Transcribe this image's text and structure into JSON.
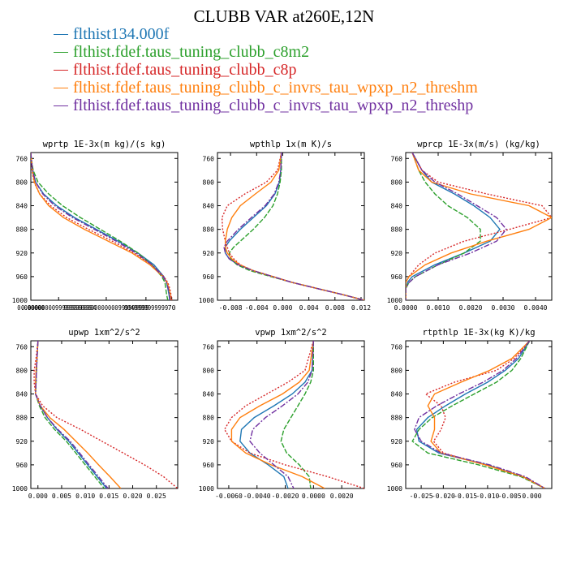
{
  "title": "CLUBB VAR at260E,12N",
  "legend": [
    {
      "name": "flthist134.000f",
      "color": "#1f77b4"
    },
    {
      "name": "flthist.fdef.taus_tuning_clubb_c8m2",
      "color": "#2ca02c"
    },
    {
      "name": "flthist.fdef.taus_tuning_clubb_c8p",
      "color": "#d62728"
    },
    {
      "name": "flthist.fdef.taus_tuning_clubb_c_invrs_tau_wpxp_n2_threshm",
      "color": "#ff7f0e"
    },
    {
      "name": "flthist.fdef.taus_tuning_clubb_c_invrs_tau_wpxp_n2_threshp",
      "color": "#7030a0"
    }
  ],
  "chart_data": [
    {
      "type": "line",
      "title": "wprtp  1E-3x(m kg)/(s kg)",
      "xlim": [
        0.0,
        3.7e-08
      ],
      "ylim": [
        1000,
        750
      ],
      "yticks": [
        760,
        800,
        840,
        880,
        920,
        960,
        1000
      ],
      "xtick_labels": [
        {
          "value": 0.0,
          "label": "0.000000"
        },
        {
          "value": 7e-09,
          "label": "0.00000000999999999994"
        },
        {
          "value": 1.9e-08,
          "label": "9998000000000000999999999"
        },
        {
          "value": 2.9e-08,
          "label": "0049999999999"
        },
        {
          "value": 3.55e-08,
          "label": "70"
        }
      ],
      "y": [
        750,
        760,
        780,
        800,
        820,
        840,
        860,
        880,
        900,
        920,
        940,
        960,
        970,
        980,
        990,
        1000
      ],
      "series": [
        {
          "values": [
            0,
            1e-10,
            5e-10,
            1.2e-09,
            3.2e-09,
            6.5e-09,
            1.1e-08,
            1.65e-08,
            2.2e-08,
            2.7e-08,
            3.1e-08,
            3.35e-08,
            3.42e-08,
            3.45e-08,
            3.48e-08,
            3.5e-08
          ]
        },
        {
          "values": [
            0,
            1e-10,
            6e-10,
            1.8e-09,
            4.5e-09,
            8e-09,
            1.25e-08,
            1.75e-08,
            2.25e-08,
            2.7e-08,
            3.05e-08,
            3.3e-08,
            3.38e-08,
            3.4e-08,
            3.42e-08,
            3.45e-08
          ]
        },
        {
          "values": [
            0,
            1e-10,
            3e-10,
            8e-10,
            2.2e-09,
            5e-09,
            9e-09,
            1.45e-08,
            2.05e-08,
            2.6e-08,
            3.05e-08,
            3.35e-08,
            3.45e-08,
            3.5e-08,
            3.53e-08,
            3.55e-08
          ]
        },
        {
          "values": [
            0,
            1e-10,
            4e-10,
            9e-10,
            2.2e-09,
            4.5e-09,
            8.2e-09,
            1.35e-08,
            1.95e-08,
            2.55e-08,
            3e-08,
            3.33e-08,
            3.43e-08,
            3.48e-08,
            3.51e-08,
            3.53e-08
          ]
        },
        {
          "values": [
            0,
            1e-10,
            4e-10,
            1.2e-09,
            3e-09,
            6e-09,
            1.05e-08,
            1.6e-08,
            2.15e-08,
            2.65e-08,
            3.05e-08,
            3.33e-08,
            3.42e-08,
            3.46e-08,
            3.49e-08,
            3.51e-08
          ]
        }
      ]
    },
    {
      "type": "line",
      "title": "wpthlp  1x(m K)/s",
      "xlim": [
        -0.01,
        0.0125
      ],
      "ylim": [
        1000,
        750
      ],
      "yticks": [
        760,
        800,
        840,
        880,
        920,
        960,
        1000
      ],
      "xticks": [
        -0.008,
        -0.004,
        0.0,
        0.004,
        0.008,
        0.012
      ],
      "xtick_labels": [
        "-0.008",
        "-0.004",
        "0.000",
        "0.004",
        "0.008",
        "0.012"
      ],
      "y": [
        750,
        780,
        800,
        820,
        840,
        860,
        880,
        900,
        910,
        920,
        930,
        940,
        950,
        960,
        970,
        980,
        990,
        1000
      ],
      "series": [
        {
          "values": [
            -0.0002,
            -0.0003,
            -0.0005,
            -0.0012,
            -0.0025,
            -0.0045,
            -0.0065,
            -0.0082,
            -0.0088,
            -0.0088,
            -0.0082,
            -0.0068,
            -0.0045,
            -0.0015,
            0.0015,
            0.0052,
            0.009,
            0.0125
          ]
        },
        {
          "values": [
            -0.0002,
            -0.0002,
            -0.0004,
            -0.0008,
            -0.0015,
            -0.0028,
            -0.0045,
            -0.0065,
            -0.0075,
            -0.0082,
            -0.008,
            -0.007,
            -0.005,
            -0.0018,
            0.0015,
            0.0052,
            0.009,
            0.0125
          ]
        },
        {
          "values": [
            -0.0002,
            -0.0008,
            -0.0025,
            -0.0058,
            -0.0085,
            -0.0093,
            -0.0092,
            -0.0088,
            -0.0085,
            -0.0082,
            -0.0075,
            -0.0065,
            -0.0045,
            -0.0015,
            0.0015,
            0.0052,
            0.009,
            0.0125
          ]
        },
        {
          "values": [
            -0.0002,
            -0.0006,
            -0.0018,
            -0.0042,
            -0.0065,
            -0.0078,
            -0.0085,
            -0.0088,
            -0.0088,
            -0.0085,
            -0.0078,
            -0.0066,
            -0.0045,
            -0.0015,
            0.0015,
            0.0052,
            0.009,
            0.0125
          ]
        },
        {
          "values": [
            -0.0002,
            -0.0003,
            -0.0006,
            -0.0013,
            -0.0027,
            -0.0048,
            -0.0068,
            -0.0085,
            -0.009,
            -0.0088,
            -0.0082,
            -0.0068,
            -0.0045,
            -0.0015,
            0.0015,
            0.0052,
            0.009,
            0.0125
          ]
        }
      ]
    },
    {
      "type": "line",
      "title": "wprcp  1E-3x(m/s) (kg/kg)",
      "xlim": [
        0.0,
        0.0045
      ],
      "ylim": [
        1000,
        750
      ],
      "yticks": [
        760,
        800,
        840,
        880,
        920,
        960,
        1000
      ],
      "xticks": [
        0.0,
        0.001,
        0.002,
        0.003,
        0.004
      ],
      "xtick_labels": [
        "0.0000",
        "0.0010",
        "0.0020",
        "0.0030",
        "0.0040"
      ],
      "y": [
        750,
        780,
        800,
        820,
        840,
        860,
        880,
        900,
        920,
        940,
        960,
        970,
        980,
        1000
      ],
      "series": [
        {
          "values": [
            0.0002,
            0.0005,
            0.0008,
            0.0015,
            0.0021,
            0.0026,
            0.0029,
            0.0026,
            0.0018,
            0.0009,
            0.0002,
            5e-05,
            0,
            0
          ]
        },
        {
          "values": [
            0.0002,
            0.0004,
            0.0006,
            0.0009,
            0.0013,
            0.0019,
            0.0023,
            0.0023,
            0.0018,
            0.001,
            0.0003,
            0.0001,
            0,
            0
          ]
        },
        {
          "values": [
            0.0002,
            0.0005,
            0.001,
            0.0025,
            0.0042,
            0.0045,
            0.0032,
            0.0018,
            0.0009,
            0.0004,
            0.0001,
            0,
            0,
            0
          ]
        },
        {
          "values": [
            0.0002,
            0.0004,
            0.0008,
            0.002,
            0.0038,
            0.0045,
            0.0038,
            0.0025,
            0.0014,
            0.0006,
            0.0001,
            0,
            0,
            0
          ]
        },
        {
          "values": [
            0.0002,
            0.0005,
            0.0009,
            0.0016,
            0.0022,
            0.0028,
            0.0031,
            0.0028,
            0.002,
            0.001,
            0.0003,
            0.0001,
            0,
            0
          ]
        }
      ]
    },
    {
      "type": "line",
      "title": "upwp  1xm^2/s^2",
      "xlim": [
        -0.0015,
        0.0295
      ],
      "ylim": [
        1000,
        750
      ],
      "yticks": [
        760,
        800,
        840,
        880,
        920,
        960,
        1000
      ],
      "xticks": [
        0.0,
        0.005,
        0.01,
        0.015,
        0.02,
        0.025
      ],
      "xtick_labels": [
        "0.000",
        "0.005",
        "0.010",
        "0.015",
        "0.020",
        "0.025"
      ],
      "y": [
        750,
        780,
        800,
        820,
        840,
        860,
        880,
        900,
        920,
        940,
        960,
        980,
        1000
      ],
      "series": [
        {
          "values": [
            0.0,
            -0.0002,
            -0.0003,
            -0.0004,
            -0.0005,
            0.0005,
            0.002,
            0.004,
            0.0065,
            0.0085,
            0.0105,
            0.0125,
            0.0145
          ]
        },
        {
          "values": [
            0.0,
            -0.0002,
            -0.0003,
            -0.0004,
            -0.0005,
            0.0003,
            0.0015,
            0.0035,
            0.006,
            0.008,
            0.01,
            0.012,
            0.014
          ]
        },
        {
          "values": [
            0.0,
            -0.0004,
            -0.0008,
            -0.0008,
            -0.0005,
            0.001,
            0.004,
            0.009,
            0.0135,
            0.018,
            0.0225,
            0.0265,
            0.0295
          ]
        },
        {
          "values": [
            0.0,
            -0.0002,
            -0.0004,
            -0.0005,
            -0.0005,
            0.0005,
            0.0025,
            0.0055,
            0.008,
            0.0105,
            0.0128,
            0.0152,
            0.0175
          ]
        },
        {
          "values": [
            0.0,
            -0.0002,
            -0.0003,
            -0.0004,
            -0.0005,
            0.0005,
            0.002,
            0.0042,
            0.0068,
            0.0088,
            0.0108,
            0.0128,
            0.0148
          ]
        }
      ]
    },
    {
      "type": "line",
      "title": "vpwp  1xm^2/s^2",
      "xlim": [
        -0.0068,
        0.0036
      ],
      "ylim": [
        1000,
        750
      ],
      "yticks": [
        760,
        800,
        840,
        880,
        920,
        960,
        1000
      ],
      "xticks": [
        -0.006,
        -0.004,
        -0.002,
        0.0,
        0.002
      ],
      "xtick_labels": [
        "-0.0060",
        "-0.0040",
        "-0.0020",
        "0.0000",
        "0.0020"
      ],
      "y": [
        750,
        800,
        820,
        840,
        860,
        880,
        900,
        920,
        940,
        960,
        980,
        1000
      ],
      "series": [
        {
          "values": [
            0,
            -0.0001,
            -0.0006,
            -0.0015,
            -0.0028,
            -0.0042,
            -0.0051,
            -0.0052,
            -0.0045,
            -0.0032,
            -0.0021,
            -0.0018
          ]
        },
        {
          "values": [
            0,
            0,
            -0.0002,
            -0.0006,
            -0.0011,
            -0.0016,
            -0.0021,
            -0.0023,
            -0.0019,
            -0.001,
            -0.0003,
            -0.0002
          ]
        },
        {
          "values": [
            0,
            -0.0006,
            -0.0018,
            -0.0033,
            -0.0048,
            -0.0058,
            -0.0063,
            -0.0058,
            -0.0045,
            -0.002,
            0.001,
            0.0036
          ]
        },
        {
          "values": [
            0,
            -0.0003,
            -0.001,
            -0.0022,
            -0.0038,
            -0.0052,
            -0.0058,
            -0.0058,
            -0.0048,
            -0.003,
            -0.0008,
            0.0008
          ]
        },
        {
          "values": [
            0,
            -0.0001,
            -0.0004,
            -0.0011,
            -0.0022,
            -0.0034,
            -0.0043,
            -0.0045,
            -0.0038,
            -0.0028,
            -0.0018,
            -0.0014
          ]
        }
      ]
    },
    {
      "type": "line",
      "title": "rtpthlp  1E-3x(kg K)/kg",
      "xlim": [
        -0.0285,
        0.0045
      ],
      "ylim": [
        1000,
        750
      ],
      "yticks": [
        760,
        800,
        840,
        880,
        920,
        960,
        1000
      ],
      "xticks": [
        -0.025,
        -0.02,
        -0.015,
        -0.01,
        -0.005,
        0.0
      ],
      "xtick_labels": [
        "-0.025",
        "-0.020",
        "-0.015",
        "-0.010",
        "-0.005",
        "0.000"
      ],
      "y": [
        750,
        780,
        800,
        820,
        840,
        860,
        880,
        900,
        920,
        940,
        960,
        980,
        1000
      ],
      "series": [
        {
          "values": [
            -0.0005,
            -0.003,
            -0.006,
            -0.01,
            -0.015,
            -0.0195,
            -0.0235,
            -0.026,
            -0.0255,
            -0.021,
            -0.01,
            -0.002,
            0.003
          ]
        },
        {
          "values": [
            -0.0005,
            -0.0025,
            -0.0045,
            -0.008,
            -0.013,
            -0.018,
            -0.0225,
            -0.0255,
            -0.027,
            -0.0235,
            -0.012,
            -0.0025,
            0.003
          ]
        },
        {
          "values": [
            -0.0005,
            -0.004,
            -0.008,
            -0.0175,
            -0.024,
            -0.0205,
            -0.0195,
            -0.0205,
            -0.0222,
            -0.02,
            -0.0105,
            -0.002,
            0.003
          ]
        },
        {
          "values": [
            -0.0005,
            -0.0045,
            -0.0095,
            -0.016,
            -0.022,
            -0.0235,
            -0.022,
            -0.022,
            -0.0228,
            -0.0205,
            -0.0105,
            -0.002,
            0.003
          ]
        },
        {
          "values": [
            -0.0005,
            -0.0035,
            -0.0065,
            -0.011,
            -0.0165,
            -0.0215,
            -0.0255,
            -0.0265,
            -0.025,
            -0.0205,
            -0.0095,
            -0.0015,
            0.003
          ]
        }
      ]
    }
  ]
}
